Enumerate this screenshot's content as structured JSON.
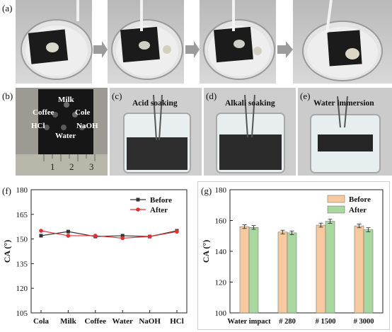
{
  "panel_labels": {
    "a": "(a)",
    "b": "(b)",
    "c": "(c)",
    "d": "(d)",
    "e": "(e)",
    "f": "(f)",
    "g": "(g)"
  },
  "photo_b": {
    "labels": [
      "Milk",
      "Coffee",
      "Cole",
      "HCl",
      "NaOH",
      "Water"
    ],
    "ruler_numbers": [
      "1",
      "2",
      "3"
    ]
  },
  "photo_c": {
    "caption": "Acid soaking"
  },
  "photo_d": {
    "caption": "Alkali soaking"
  },
  "photo_e": {
    "caption": "Water immersion"
  },
  "chart_data": [
    {
      "type": "line",
      "ylabel": "CA (°)",
      "categories": [
        "Cola",
        "Milk",
        "Coffee",
        "Water",
        "NaOH",
        "HCl"
      ],
      "ylim": [
        105,
        180
      ],
      "yticks": [
        105,
        120,
        135,
        150,
        165,
        180
      ],
      "legend_position": "top-right",
      "series": [
        {
          "name": "Before",
          "color": "#333333",
          "marker": "square",
          "values": [
            152.0,
            154.5,
            151.5,
            152.0,
            151.5,
            155.0
          ]
        },
        {
          "name": "After",
          "color": "#e03030",
          "marker": "circle",
          "values": [
            155.0,
            152.0,
            152.0,
            150.5,
            151.5,
            154.5
          ]
        }
      ]
    },
    {
      "type": "bar",
      "ylabel": "CA (°)",
      "categories": [
        "Water impact",
        "# 280",
        "# 1500",
        "# 3000"
      ],
      "ylim": [
        100,
        180
      ],
      "yticks": [
        100,
        120,
        140,
        160,
        180
      ],
      "legend_position": "top-right",
      "series": [
        {
          "name": "Before",
          "color": "#f6c99e",
          "values": [
            156.0,
            152.5,
            157.0,
            156.5
          ],
          "errors": [
            1.2,
            1.2,
            1.3,
            1.2
          ]
        },
        {
          "name": "After",
          "color": "#a8d8a0",
          "values": [
            155.5,
            152.0,
            159.5,
            154.0
          ],
          "errors": [
            1.2,
            1.2,
            1.3,
            1.3
          ]
        }
      ]
    }
  ]
}
